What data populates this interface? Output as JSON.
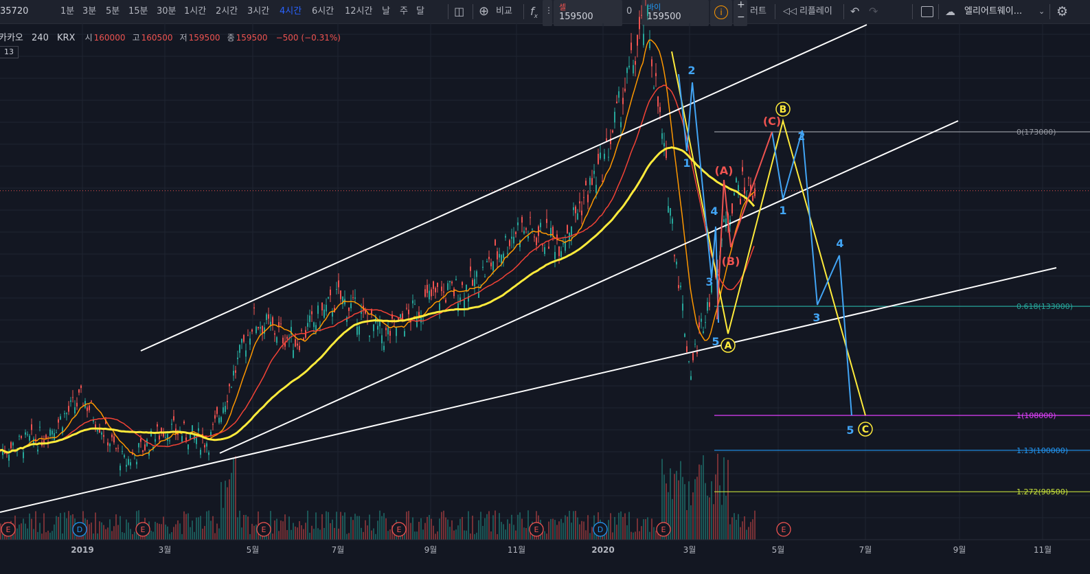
{
  "toolbar": {
    "symbol_code": "35720",
    "intervals": [
      "1분",
      "3분",
      "5분",
      "15분",
      "30분",
      "1시간",
      "2시간",
      "3시간",
      "4시간",
      "6시간",
      "12시간",
      "날",
      "주",
      "달"
    ],
    "active_interval": "4시간",
    "compare_label": "비교",
    "alert_label": "러트",
    "replay_label": "리플레이",
    "layout_name": "엘리어트웨이..."
  },
  "trade_panel": {
    "sell_label": "셀",
    "sell_price": "159500",
    "spread": "0",
    "buy_label": "바이",
    "buy_price": "159500"
  },
  "legend": {
    "name": "카카오",
    "interval": "240",
    "exchange": "KRX",
    "open_label": "시",
    "open": "160000",
    "high_label": "고",
    "high": "160500",
    "low_label": "저",
    "low": "159500",
    "close_label": "종",
    "close": "159500",
    "change": "−500 (−0.31%)",
    "badge": "13"
  },
  "chart_data": {
    "type": "candlestick",
    "symbol": "카카오",
    "exchange": "KRX",
    "interval": "240",
    "x_ticks": [
      "2019",
      "3월",
      "5월",
      "7월",
      "9월",
      "11월",
      "2020",
      "3월",
      "5월",
      "7월",
      "9월",
      "11월"
    ],
    "y_range": [
      78000,
      205000
    ],
    "last_price": 159500,
    "price_path": [
      [
        "2018-11",
        100000
      ],
      [
        "2018-12",
        103000
      ],
      [
        "2019-01",
        112000
      ],
      [
        "2019-02",
        97000
      ],
      [
        "2019-03",
        105000
      ],
      [
        "2019-04",
        102000
      ],
      [
        "2019-05",
        130000
      ],
      [
        "2019-06",
        125000
      ],
      [
        "2019-07",
        135000
      ],
      [
        "2019-08",
        126000
      ],
      [
        "2019-09",
        135000
      ],
      [
        "2019-10",
        138000
      ],
      [
        "2019-11",
        151000
      ],
      [
        "2019-12",
        148000
      ],
      [
        "2020-01",
        166000
      ],
      [
        "2020-02",
        200000
      ],
      [
        "2020-03",
        118000
      ],
      [
        "2020-04",
        160000
      ]
    ],
    "fibonacci": [
      {
        "label": "0(173000)",
        "level": 0,
        "price": 173000,
        "color": "#9598a1"
      },
      {
        "label": "0.618(133000)",
        "level": 0.618,
        "price": 133000,
        "color": "#26a69a"
      },
      {
        "label": "1(108000)",
        "level": 1,
        "price": 108000,
        "color": "#e040fb"
      },
      {
        "label": "1.13(100000)",
        "level": 1.13,
        "price": 100000,
        "color": "#2196f3"
      },
      {
        "label": "1.272(90500)",
        "level": 1.272,
        "price": 90500,
        "color": "#c6e03b"
      }
    ],
    "wave_labels": [
      "1",
      "2",
      "3",
      "4",
      "5",
      "(A)",
      "(B)",
      "(C)",
      "A",
      "B",
      "C"
    ],
    "event_markers": [
      "E",
      "D",
      "E",
      "E",
      "E",
      "E",
      "D",
      "E",
      "E"
    ],
    "moving_averages": [
      {
        "color": "#ff9800"
      },
      {
        "color": "#f44336"
      },
      {
        "color": "#ffeb3b"
      }
    ],
    "grid": true
  }
}
